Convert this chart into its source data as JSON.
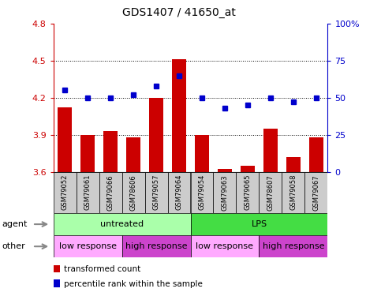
{
  "title": "GDS1407 / 41650_at",
  "samples": [
    "GSM79052",
    "GSM79061",
    "GSM79066",
    "GSM78606",
    "GSM79057",
    "GSM79064",
    "GSM79054",
    "GSM79063",
    "GSM79065",
    "GSM78607",
    "GSM79058",
    "GSM79067"
  ],
  "bar_values": [
    4.12,
    3.9,
    3.93,
    3.88,
    4.2,
    4.51,
    3.9,
    3.62,
    3.65,
    3.95,
    3.72,
    3.88
  ],
  "dot_values": [
    55,
    50,
    50,
    52,
    58,
    65,
    50,
    43,
    45,
    50,
    47,
    50
  ],
  "ylim_left": [
    3.6,
    4.8
  ],
  "ylim_right": [
    0,
    100
  ],
  "yticks_left": [
    3.6,
    3.9,
    4.2,
    4.5,
    4.8
  ],
  "yticks_right": [
    0,
    25,
    50,
    75,
    100
  ],
  "ytick_labels_right": [
    "0",
    "25",
    "50",
    "75",
    "100%"
  ],
  "hlines": [
    3.9,
    4.2,
    4.5
  ],
  "bar_color": "#cc0000",
  "dot_color": "#0000cc",
  "bar_bottom": 3.6,
  "agent_groups": [
    {
      "label": "untreated",
      "start": 0,
      "end": 6,
      "color": "#aaffaa"
    },
    {
      "label": "LPS",
      "start": 6,
      "end": 12,
      "color": "#44dd44"
    }
  ],
  "other_groups": [
    {
      "label": "low response",
      "start": 0,
      "end": 3,
      "color": "#ffaaff"
    },
    {
      "label": "high response",
      "start": 3,
      "end": 6,
      "color": "#cc44cc"
    },
    {
      "label": "low response",
      "start": 6,
      "end": 9,
      "color": "#ffaaff"
    },
    {
      "label": "high response",
      "start": 9,
      "end": 12,
      "color": "#cc44cc"
    }
  ],
  "legend_items": [
    {
      "label": "transformed count",
      "color": "#cc0000"
    },
    {
      "label": "percentile rank within the sample",
      "color": "#0000cc"
    }
  ],
  "left_axis_color": "#cc0000",
  "right_axis_color": "#0000cc",
  "sample_box_color": "#cccccc",
  "tick_label_fontsize": 8,
  "title_fontsize": 10,
  "sample_fontsize": 6,
  "group_fontsize": 8,
  "legend_fontsize": 7.5
}
